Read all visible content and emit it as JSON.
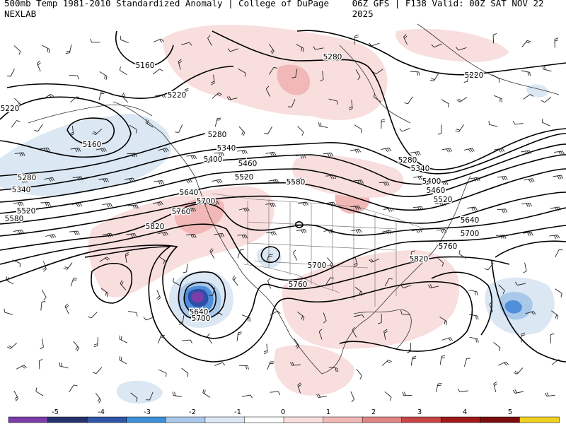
{
  "header": {
    "product": "500mb Temp 1981-2010 Standardized Anomaly | College of DuPage NEXLAB",
    "run": "06Z GFS | F138 Valid: 00Z SAT NOV 22 2025"
  },
  "map": {
    "contour_labels": [
      "5160",
      "5160",
      "5220",
      "5220",
      "5220",
      "5280",
      "5280",
      "5280",
      "5280",
      "5340",
      "5340",
      "5340",
      "5400",
      "5400",
      "5460",
      "5460",
      "5520",
      "5520",
      "5520",
      "5580",
      "5580",
      "5640",
      "5640",
      "5640",
      "5700",
      "5700",
      "5700",
      "5700",
      "5760",
      "5760",
      "5760",
      "5820",
      "5820"
    ],
    "colors": {
      "contour": "#000000",
      "coast": "#333333",
      "border": "#555555",
      "warm_light": "#f9dede",
      "warm_mid": "#f2b8b8",
      "warm_strong": "#e08585",
      "cold_light": "#dbe7f3",
      "cold_mid": "#a9c8ea",
      "cold_strong": "#4f8ed9",
      "cold_deep": "#2c4fa8",
      "cold_extreme": "#7a3ea8"
    }
  },
  "colorbar": {
    "ticks": [
      "-5",
      "-4",
      "-3",
      "-2",
      "-1",
      "0",
      "1",
      "2",
      "3",
      "4",
      "5"
    ],
    "colors": [
      "#7a3ea8",
      "#26326e",
      "#2f55a8",
      "#3c8fd8",
      "#a9c8ea",
      "#dbe7f3",
      "#ffffff",
      "#f9dede",
      "#f2b8b8",
      "#e08585",
      "#c94545",
      "#a01818",
      "#7a0c0c",
      "#f0d020"
    ]
  }
}
